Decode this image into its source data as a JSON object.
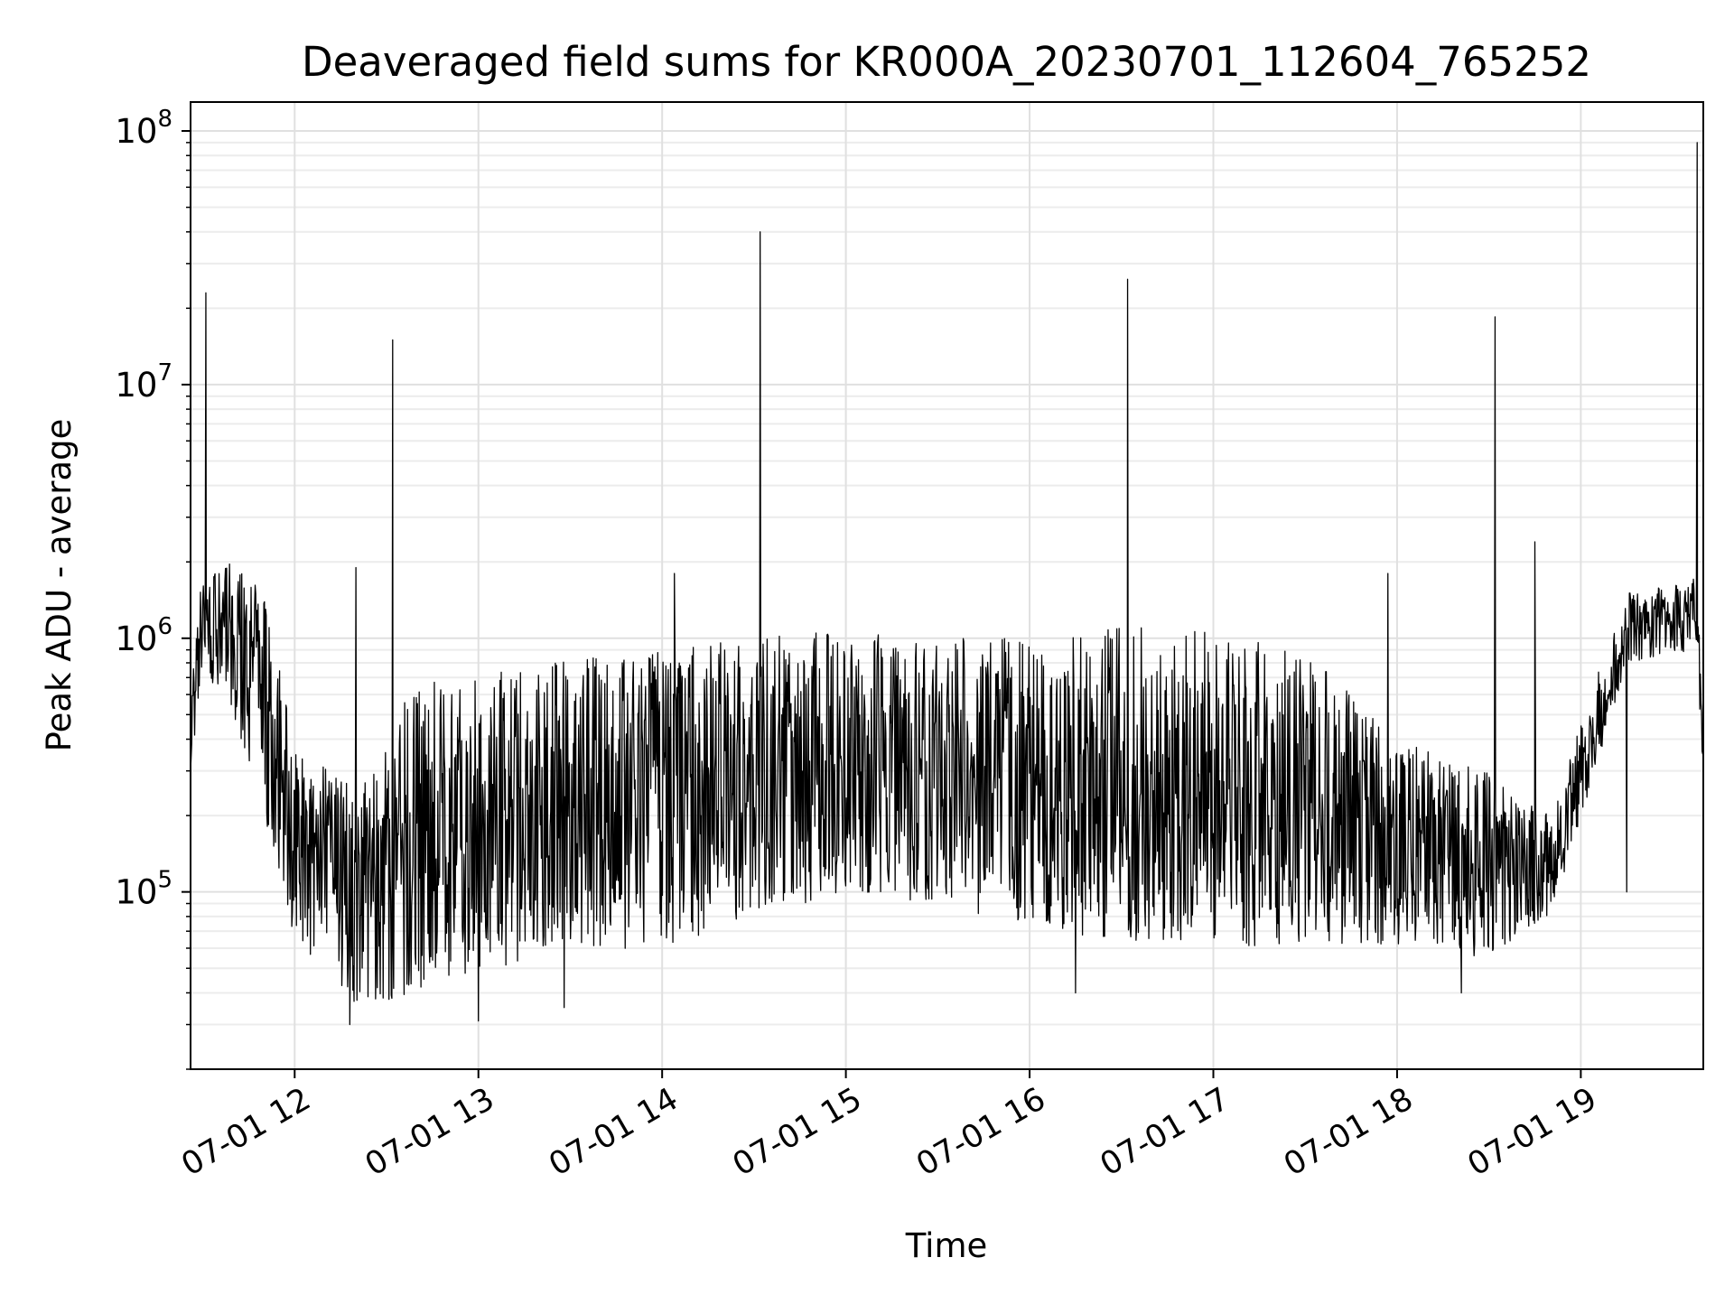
{
  "chart_data": {
    "type": "line",
    "title": "Deaveraged field sums for KR000A_20230701_112604_765252",
    "xlabel": "Time",
    "ylabel": "Peak ADU - average",
    "yscale": "log",
    "ylim": [
      20000,
      130000000
    ],
    "xlim": [
      "2023-07-01 11:26",
      "2023-07-01 19:40"
    ],
    "grid": true,
    "x_ticks": [
      "07-01 12",
      "07-01 13",
      "07-01 14",
      "07-01 15",
      "07-01 16",
      "07-01 17",
      "07-01 18",
      "07-01 19"
    ],
    "x_tick_times": [
      "2023-07-01 12:00",
      "2023-07-01 13:00",
      "2023-07-01 14:00",
      "2023-07-01 15:00",
      "2023-07-01 16:00",
      "2023-07-01 17:00",
      "2023-07-01 18:00",
      "2023-07-01 19:00"
    ],
    "y_ticks": [
      {
        "value": 100000,
        "base": "10",
        "exp": "5"
      },
      {
        "value": 1000000,
        "base": "10",
        "exp": "6"
      },
      {
        "value": 10000000,
        "base": "10",
        "exp": "7"
      },
      {
        "value": 100000000,
        "base": "10",
        "exp": "8"
      }
    ],
    "line_color": "#000000",
    "envelope": [
      {
        "t": "2023-07-01 11:26",
        "low": 300000,
        "high": 600000
      },
      {
        "t": "2023-07-01 11:30",
        "low": 700000,
        "high": 2000000
      },
      {
        "t": "2023-07-01 11:40",
        "low": 500000,
        "high": 2000000
      },
      {
        "t": "2023-07-01 11:50",
        "low": 200000,
        "high": 1500000
      },
      {
        "t": "2023-07-01 12:00",
        "low": 60000,
        "high": 400000
      },
      {
        "t": "2023-07-01 12:20",
        "low": 35000,
        "high": 250000
      },
      {
        "t": "2023-07-01 12:40",
        "low": 40000,
        "high": 700000
      },
      {
        "t": "2023-07-01 13:00",
        "low": 50000,
        "high": 700000
      },
      {
        "t": "2023-07-01 13:30",
        "low": 55000,
        "high": 850000
      },
      {
        "t": "2023-07-01 14:00",
        "low": 60000,
        "high": 900000
      },
      {
        "t": "2023-07-01 14:30",
        "low": 80000,
        "high": 1000000
      },
      {
        "t": "2023-07-01 15:00",
        "low": 100000,
        "high": 1100000
      },
      {
        "t": "2023-07-01 15:30",
        "low": 90000,
        "high": 1000000
      },
      {
        "t": "2023-07-01 16:00",
        "low": 70000,
        "high": 1000000
      },
      {
        "t": "2023-07-01 16:30",
        "low": 65000,
        "high": 1100000
      },
      {
        "t": "2023-07-01 17:00",
        "low": 60000,
        "high": 1100000
      },
      {
        "t": "2023-07-01 17:30",
        "low": 60000,
        "high": 900000
      },
      {
        "t": "2023-07-01 18:00",
        "low": 60000,
        "high": 400000
      },
      {
        "t": "2023-07-01 18:30",
        "low": 55000,
        "high": 300000
      },
      {
        "t": "2023-07-01 18:50",
        "low": 80000,
        "high": 200000
      },
      {
        "t": "2023-07-01 19:05",
        "low": 300000,
        "high": 700000
      },
      {
        "t": "2023-07-01 19:15",
        "low": 800000,
        "high": 1500000
      },
      {
        "t": "2023-07-01 19:38",
        "low": 900000,
        "high": 1800000
      },
      {
        "t": "2023-07-01 19:40",
        "low": 250000,
        "high": 400000
      }
    ],
    "spikes": [
      {
        "t": "2023-07-01 11:31",
        "y": 23000000
      },
      {
        "t": "2023-07-01 12:20",
        "y": 1900000
      },
      {
        "t": "2023-07-01 12:32",
        "y": 15000000
      },
      {
        "t": "2023-07-01 14:04",
        "y": 1800000
      },
      {
        "t": "2023-07-01 14:32",
        "y": 40000000
      },
      {
        "t": "2023-07-01 16:32",
        "y": 26000000
      },
      {
        "t": "2023-07-01 17:57",
        "y": 1800000
      },
      {
        "t": "2023-07-01 18:32",
        "y": 18500000
      },
      {
        "t": "2023-07-01 18:45",
        "y": 2400000
      },
      {
        "t": "2023-07-01 19:38",
        "y": 90000000
      }
    ],
    "dips": [
      {
        "t": "2023-07-01 12:18",
        "y": 30000
      },
      {
        "t": "2023-07-01 13:00",
        "y": 31000
      },
      {
        "t": "2023-07-01 13:28",
        "y": 35000
      },
      {
        "t": "2023-07-01 16:15",
        "y": 40000
      },
      {
        "t": "2023-07-01 18:21",
        "y": 40000
      },
      {
        "t": "2023-07-01 19:15",
        "y": 100000
      }
    ]
  }
}
